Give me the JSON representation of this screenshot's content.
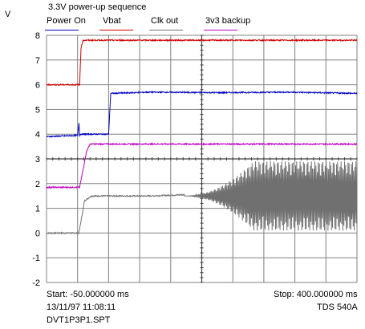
{
  "chart_data": {
    "type": "line",
    "title": "3.3V power-up sequence",
    "ylabel": "V",
    "ylim": [
      -2,
      8
    ],
    "xlim_ms": [
      -50,
      400
    ],
    "grid": true,
    "legend_position": "top",
    "y_ticks": [
      "8",
      "7",
      "6",
      "5",
      "4",
      "3",
      "2",
      "1",
      "0",
      "-1",
      "-2"
    ],
    "series": [
      {
        "name": "Power On",
        "color": "#0000c0",
        "x": [
          -50,
          -5,
          -3,
          -2,
          0,
          40,
          43,
          100,
          200,
          300,
          400
        ],
        "y": [
          3.9,
          3.95,
          4.45,
          3.95,
          4.0,
          4.0,
          5.65,
          5.7,
          5.68,
          5.7,
          5.65
        ]
      },
      {
        "name": "Vbat",
        "color": "#d00000",
        "x": [
          -50,
          -2,
          0,
          3,
          100,
          200,
          300,
          400
        ],
        "y": [
          6.0,
          6.0,
          7.5,
          7.8,
          7.8,
          7.8,
          7.8,
          7.8
        ]
      },
      {
        "name": "Clk out",
        "color": "#707070",
        "x": [
          -50,
          -3,
          5,
          15,
          100,
          150,
          180,
          220,
          260,
          300,
          350,
          400
        ],
        "y": [
          0.0,
          0.0,
          1.3,
          1.5,
          1.5,
          1.55,
          1.5,
          1.5,
          1.5,
          1.5,
          1.5,
          1.5
        ],
        "oscillation": {
          "start_ms": 150,
          "full_ms": 250,
          "end_ms": 400,
          "peak_amplitude_v": 1.4,
          "center_v": 1.5
        }
      },
      {
        "name": "3v3 backup",
        "color": "#c000c0",
        "x": [
          -50,
          -2,
          8,
          13,
          100,
          200,
          300,
          400
        ],
        "y": [
          1.85,
          1.85,
          3.3,
          3.6,
          3.6,
          3.6,
          3.6,
          3.6
        ]
      }
    ]
  },
  "footer": {
    "start": "Start: -50.000000 ms",
    "stop": "Stop: 400.000000 ms",
    "timestamp": "13/11/97 11:08:11",
    "instrument": "TDS 540A",
    "filename": "DVT1P3P1.SPT"
  }
}
